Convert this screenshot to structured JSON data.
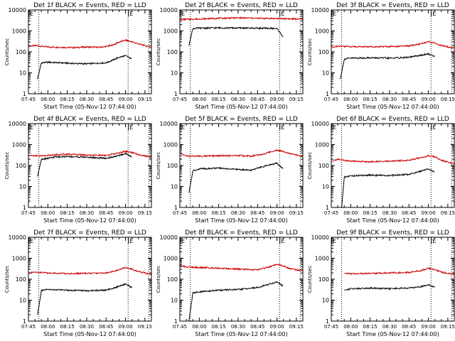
{
  "chart_data": [
    {
      "type": "line",
      "title": "Det 1f BLACK = Events, RED = LLD",
      "xlabel": "Start Time (05-Nov-12 07:44:00)",
      "ylabel": "Counts/sec",
      "y_scale": "log",
      "ylim": [
        1,
        10000
      ],
      "xlim": [
        "07:45",
        "09:20"
      ],
      "x_ticks": [
        "07:45",
        "08:00",
        "08:15",
        "08:30",
        "08:45",
        "09:00",
        "09:15"
      ],
      "y_ticks": [
        "1",
        "10",
        "100",
        "1000",
        "10000"
      ],
      "markers": [
        {
          "time": "07:45",
          "label": "E"
        },
        {
          "time": "09:02",
          "label": "E"
        }
      ],
      "dotted_lines": [
        "07:53",
        "09:02",
        "09:18"
      ],
      "grid": false,
      "series": [
        {
          "color": "#cc0000",
          "x": [
            "07:45",
            "07:50",
            "07:55",
            "08:00",
            "08:10",
            "08:20",
            "08:30",
            "08:40",
            "08:45",
            "08:50",
            "08:55",
            "09:00",
            "09:05",
            "09:10",
            "09:15",
            "09:20"
          ],
          "values": [
            180,
            200,
            185,
            170,
            165,
            160,
            170,
            165,
            180,
            210,
            290,
            360,
            300,
            240,
            200,
            160
          ]
        },
        {
          "color": "#000000",
          "x": [
            "07:52",
            "07:55",
            "08:00",
            "08:10",
            "08:20",
            "08:30",
            "08:40",
            "08:45",
            "08:50",
            "08:55",
            "09:00",
            "09:05"
          ],
          "values": [
            5,
            30,
            32,
            30,
            28,
            27,
            29,
            30,
            40,
            55,
            65,
            45
          ]
        }
      ]
    },
    {
      "type": "line",
      "title": "Det 2f BLACK = Events, RED = LLD",
      "xlabel": "Start Time (05-Nov-12 07:44:00)",
      "ylabel": "Counts/sec",
      "y_scale": "log",
      "ylim": [
        1,
        10000
      ],
      "xlim": [
        "07:45",
        "09:20"
      ],
      "x_ticks": [
        "07:45",
        "08:00",
        "08:15",
        "08:30",
        "08:45",
        "09:00",
        "09:15"
      ],
      "y_ticks": [
        "1",
        "10",
        "100",
        "1000",
        "10000"
      ],
      "markers": [
        {
          "time": "07:45",
          "label": "E"
        },
        {
          "time": "09:02",
          "label": "E"
        }
      ],
      "dotted_lines": [
        "07:53",
        "09:02",
        "09:18"
      ],
      "grid": false,
      "series": [
        {
          "color": "#cc0000",
          "x": [
            "07:45",
            "08:00",
            "08:15",
            "08:30",
            "08:45",
            "09:00",
            "09:10",
            "09:20"
          ],
          "values": [
            3500,
            3700,
            4000,
            4200,
            4000,
            3900,
            3800,
            3600
          ]
        },
        {
          "color": "#000000",
          "x": [
            "07:52",
            "07:55",
            "08:00",
            "08:15",
            "08:30",
            "08:45",
            "09:00",
            "09:05"
          ],
          "values": [
            200,
            1300,
            1350,
            1400,
            1380,
            1350,
            1300,
            500
          ]
        }
      ]
    },
    {
      "type": "line",
      "title": "Det 3f BLACK = Events, RED = LLD",
      "xlabel": "Start Time (05-Nov-12 07:44:00)",
      "ylabel": "Counts/sec",
      "y_scale": "log",
      "ylim": [
        1,
        10000
      ],
      "xlim": [
        "07:45",
        "09:20"
      ],
      "x_ticks": [
        "07:45",
        "08:00",
        "08:15",
        "08:30",
        "08:45",
        "09:00",
        "09:15"
      ],
      "y_ticks": [
        "1",
        "10",
        "100",
        "1000",
        "10000"
      ],
      "markers": [
        {
          "time": "07:45",
          "label": "E"
        },
        {
          "time": "09:02",
          "label": "E"
        }
      ],
      "dotted_lines": [
        "07:53",
        "09:02",
        "09:18"
      ],
      "grid": false,
      "series": [
        {
          "color": "#cc0000",
          "x": [
            "07:45",
            "07:50",
            "08:00",
            "08:15",
            "08:30",
            "08:45",
            "08:55",
            "09:00",
            "09:05",
            "09:10",
            "09:20"
          ],
          "values": [
            160,
            190,
            180,
            175,
            180,
            190,
            250,
            300,
            260,
            200,
            150
          ]
        },
        {
          "color": "#000000",
          "x": [
            "07:52",
            "07:55",
            "08:00",
            "08:15",
            "08:30",
            "08:45",
            "08:55",
            "09:00",
            "09:05"
          ],
          "values": [
            5,
            45,
            50,
            52,
            50,
            55,
            70,
            80,
            60
          ]
        }
      ]
    },
    {
      "type": "line",
      "title": "Det 4f BLACK = Events, RED = LLD",
      "xlabel": "Start Time (05-Nov-12 07:44:00)",
      "ylabel": "Counts/sec",
      "y_scale": "log",
      "ylim": [
        1,
        10000
      ],
      "xlim": [
        "07:45",
        "09:20"
      ],
      "x_ticks": [
        "07:45",
        "08:00",
        "08:15",
        "08:30",
        "08:45",
        "09:00",
        "09:15"
      ],
      "y_ticks": [
        "1",
        "10",
        "100",
        "1000",
        "10000"
      ],
      "markers": [
        {
          "time": "07:45",
          "label": "E"
        },
        {
          "time": "09:02",
          "label": "E"
        }
      ],
      "dotted_lines": [
        "07:53",
        "09:02",
        "09:18"
      ],
      "grid": false,
      "series": [
        {
          "color": "#cc0000",
          "x": [
            "07:45",
            "07:55",
            "08:05",
            "08:15",
            "08:30",
            "08:45",
            "08:55",
            "09:00",
            "09:05",
            "09:10",
            "09:20"
          ],
          "values": [
            300,
            290,
            320,
            350,
            320,
            300,
            400,
            480,
            420,
            330,
            250
          ]
        },
        {
          "color": "#000000",
          "x": [
            "07:52",
            "07:55",
            "08:05",
            "08:15",
            "08:30",
            "08:45",
            "08:55",
            "09:00",
            "09:05"
          ],
          "values": [
            30,
            200,
            250,
            270,
            250,
            220,
            300,
            380,
            250
          ]
        }
      ]
    },
    {
      "type": "line",
      "title": "Det 5f BLACK = Events, RED = LLD",
      "xlabel": "Start Time (05-Nov-12 07:44:00)",
      "ylabel": "Counts/sec",
      "y_scale": "log",
      "ylim": [
        1,
        10000
      ],
      "xlim": [
        "07:45",
        "09:20"
      ],
      "x_ticks": [
        "07:45",
        "08:00",
        "08:15",
        "08:30",
        "08:45",
        "09:00",
        "09:15"
      ],
      "y_ticks": [
        "1",
        "10",
        "100",
        "1000",
        "10000"
      ],
      "markers": [
        {
          "time": "07:45",
          "label": "E"
        },
        {
          "time": "09:02",
          "label": "E"
        }
      ],
      "dotted_lines": [
        "07:53",
        "09:02",
        "09:18"
      ],
      "grid": false,
      "series": [
        {
          "color": "#cc0000",
          "x": [
            "07:45",
            "07:50",
            "08:00",
            "08:15",
            "08:30",
            "08:40",
            "08:50",
            "08:55",
            "09:00",
            "09:05",
            "09:10",
            "09:20"
          ],
          "values": [
            400,
            280,
            280,
            290,
            300,
            280,
            350,
            450,
            550,
            480,
            380,
            270
          ]
        },
        {
          "color": "#000000",
          "x": [
            "07:52",
            "07:55",
            "08:00",
            "08:15",
            "08:30",
            "08:40",
            "08:50",
            "08:55",
            "09:00",
            "09:05"
          ],
          "values": [
            5,
            55,
            70,
            75,
            65,
            60,
            90,
            110,
            130,
            70
          ]
        }
      ]
    },
    {
      "type": "line",
      "title": "Det 6f BLACK = Events, RED = LLD",
      "xlabel": "Start Time (05-Nov-12 07:44:00)",
      "ylabel": "Counts/sec",
      "y_scale": "log",
      "ylim": [
        1,
        10000
      ],
      "xlim": [
        "07:45",
        "09:20"
      ],
      "x_ticks": [
        "07:45",
        "08:00",
        "08:15",
        "08:30",
        "08:45",
        "09:00",
        "09:15"
      ],
      "y_ticks": [
        "1",
        "10",
        "100",
        "1000",
        "10000"
      ],
      "markers": [
        {
          "time": "07:45",
          "label": "E"
        },
        {
          "time": "09:02",
          "label": "E"
        }
      ],
      "dotted_lines": [
        "07:53",
        "09:02",
        "09:18"
      ],
      "grid": false,
      "series": [
        {
          "color": "#cc0000",
          "x": [
            "07:45",
            "07:50",
            "08:00",
            "08:15",
            "08:30",
            "08:45",
            "08:55",
            "09:00",
            "09:05",
            "09:10",
            "09:20"
          ],
          "values": [
            150,
            200,
            160,
            150,
            160,
            180,
            240,
            300,
            260,
            180,
            120
          ]
        },
        {
          "color": "#000000",
          "x": [
            "07:53",
            "07:55",
            "08:00",
            "08:15",
            "08:30",
            "08:45",
            "08:55",
            "09:00",
            "09:05"
          ],
          "values": [
            1,
            28,
            32,
            35,
            33,
            38,
            55,
            70,
            45
          ]
        }
      ]
    },
    {
      "type": "line",
      "title": "Det 7f BLACK = Events, RED = LLD",
      "xlabel": "Start Time (05-Nov-12 07:44:00)",
      "ylabel": "Counts/sec",
      "y_scale": "log",
      "ylim": [
        1,
        10000
      ],
      "xlim": [
        "07:45",
        "09:20"
      ],
      "x_ticks": [
        "07:45",
        "08:00",
        "08:15",
        "08:30",
        "08:45",
        "09:00",
        "09:15"
      ],
      "y_ticks": [
        "1",
        "10",
        "100",
        "1000",
        "10000"
      ],
      "markers": [
        {
          "time": "07:45",
          "label": "E"
        },
        {
          "time": "09:02",
          "label": "E"
        }
      ],
      "dotted_lines": [
        "07:53",
        "09:02",
        "09:18"
      ],
      "grid": false,
      "series": [
        {
          "color": "#cc0000",
          "x": [
            "07:45",
            "07:50",
            "08:00",
            "08:15",
            "08:30",
            "08:45",
            "08:55",
            "09:00",
            "09:05",
            "09:10",
            "09:20"
          ],
          "values": [
            190,
            220,
            200,
            185,
            190,
            200,
            280,
            360,
            300,
            230,
            170
          ]
        },
        {
          "color": "#000000",
          "x": [
            "07:52",
            "07:55",
            "08:00",
            "08:15",
            "08:30",
            "08:45",
            "08:55",
            "09:00",
            "09:05"
          ],
          "values": [
            2,
            28,
            32,
            30,
            28,
            30,
            45,
            60,
            40
          ]
        }
      ]
    },
    {
      "type": "line",
      "title": "Det 8f BLACK = Events, RED = LLD",
      "xlabel": "Start Time (05-Nov-12 07:44:00)",
      "ylabel": "Counts/sec",
      "y_scale": "log",
      "ylim": [
        1,
        10000
      ],
      "xlim": [
        "07:45",
        "09:20"
      ],
      "x_ticks": [
        "07:45",
        "08:00",
        "08:15",
        "08:30",
        "08:45",
        "09:00",
        "09:15"
      ],
      "y_ticks": [
        "1",
        "10",
        "100",
        "1000",
        "10000"
      ],
      "markers": [
        {
          "time": "07:45",
          "label": "E"
        },
        {
          "time": "09:02",
          "label": "E"
        }
      ],
      "dotted_lines": [
        "07:53",
        "09:02",
        "09:18"
      ],
      "grid": false,
      "series": [
        {
          "color": "#cc0000",
          "x": [
            "07:45",
            "07:50",
            "08:00",
            "08:10",
            "08:15",
            "08:30",
            "08:45",
            "08:55",
            "09:00",
            "09:05",
            "09:10",
            "09:20"
          ],
          "values": [
            450,
            380,
            360,
            350,
            340,
            300,
            280,
            400,
            520,
            430,
            320,
            250
          ]
        },
        {
          "color": "#000000",
          "x": [
            "07:52",
            "07:55",
            "08:00",
            "08:10",
            "08:15",
            "08:30",
            "08:45",
            "08:55",
            "09:00",
            "09:05"
          ],
          "values": [
            1,
            22,
            25,
            28,
            30,
            32,
            40,
            60,
            75,
            45
          ]
        }
      ]
    },
    {
      "type": "line",
      "title": "Det 9f BLACK = Events, RED = LLD",
      "xlabel": "Start Time (05-Nov-12 07:44:00)",
      "ylabel": "Counts/sec",
      "y_scale": "log",
      "ylim": [
        1,
        10000
      ],
      "xlim": [
        "07:45",
        "09:20"
      ],
      "x_ticks": [
        "07:45",
        "08:00",
        "08:15",
        "08:30",
        "08:45",
        "09:00",
        "09:15"
      ],
      "y_ticks": [
        "1",
        "10",
        "100",
        "1000",
        "10000"
      ],
      "markers": [
        {
          "time": "07:45",
          "label": "E"
        },
        {
          "time": "09:02",
          "label": "E"
        }
      ],
      "dotted_lines": [
        "07:53",
        "09:02",
        "09:18"
      ],
      "grid": false,
      "series": [
        {
          "color": "#cc0000",
          "x": [
            "07:55",
            "08:00",
            "08:15",
            "08:30",
            "08:45",
            "08:55",
            "09:00",
            "09:05",
            "09:10",
            "09:20"
          ],
          "values": [
            190,
            180,
            190,
            200,
            210,
            260,
            330,
            280,
            220,
            170
          ]
        },
        {
          "color": "#000000",
          "x": [
            "07:55",
            "08:00",
            "08:15",
            "08:30",
            "08:45",
            "08:55",
            "09:00",
            "09:05"
          ],
          "values": [
            30,
            35,
            38,
            35,
            38,
            45,
            55,
            40
          ]
        }
      ]
    }
  ]
}
